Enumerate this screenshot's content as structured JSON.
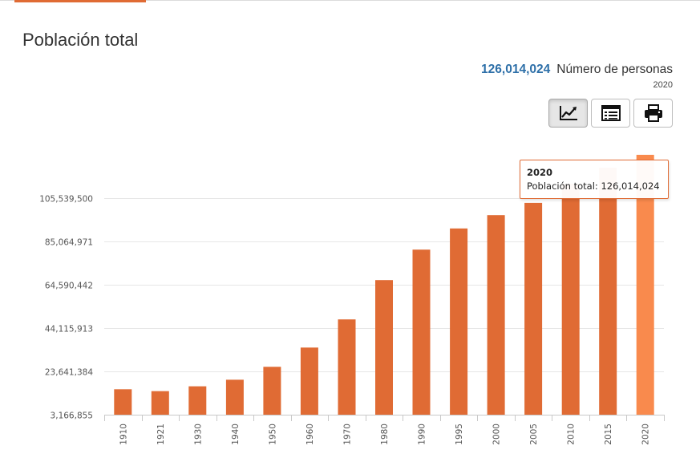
{
  "page": {
    "title": "Población total"
  },
  "summary": {
    "value": "126,014,024",
    "unit": "Número de personas",
    "year": "2020"
  },
  "toolbar": [
    {
      "name": "chart-view-button",
      "icon": "line-chart-icon",
      "active": true
    },
    {
      "name": "table-view-button",
      "icon": "table-list-icon",
      "active": false
    },
    {
      "name": "print-button",
      "icon": "printer-icon",
      "active": false
    }
  ],
  "colors": {
    "bar": "#e06b34",
    "bar_highlight": "#f98a4d",
    "accent": "#e06b34",
    "value_blue": "#2d6fa8"
  },
  "tooltip": {
    "year": "2020",
    "label": "Población total:",
    "value": "126,014,024"
  },
  "chart_data": {
    "type": "bar",
    "title": "Población total",
    "xlabel": "",
    "ylabel": "Número de personas",
    "categories": [
      "1910",
      "1921",
      "1930",
      "1940",
      "1950",
      "1960",
      "1970",
      "1980",
      "1990",
      "1995",
      "2000",
      "2005",
      "2010",
      "2015",
      "2020"
    ],
    "values": [
      15200000,
      14300000,
      16600000,
      19700000,
      25800000,
      34900000,
      48200000,
      66800000,
      81200000,
      91200000,
      97500000,
      103300000,
      112300000,
      119900000,
      126014024
    ],
    "highlighted_category": "2020",
    "yticks": [
      3166855,
      23641384,
      44115913,
      64590442,
      85064971,
      105539500
    ],
    "ytick_labels": [
      "3,166,855",
      "23,641,384",
      "44,115,913",
      "64,590,442",
      "85,064,971",
      "105,539,500"
    ],
    "ylim": [
      3166855,
      126014024
    ],
    "grid": true,
    "legend": "none"
  }
}
